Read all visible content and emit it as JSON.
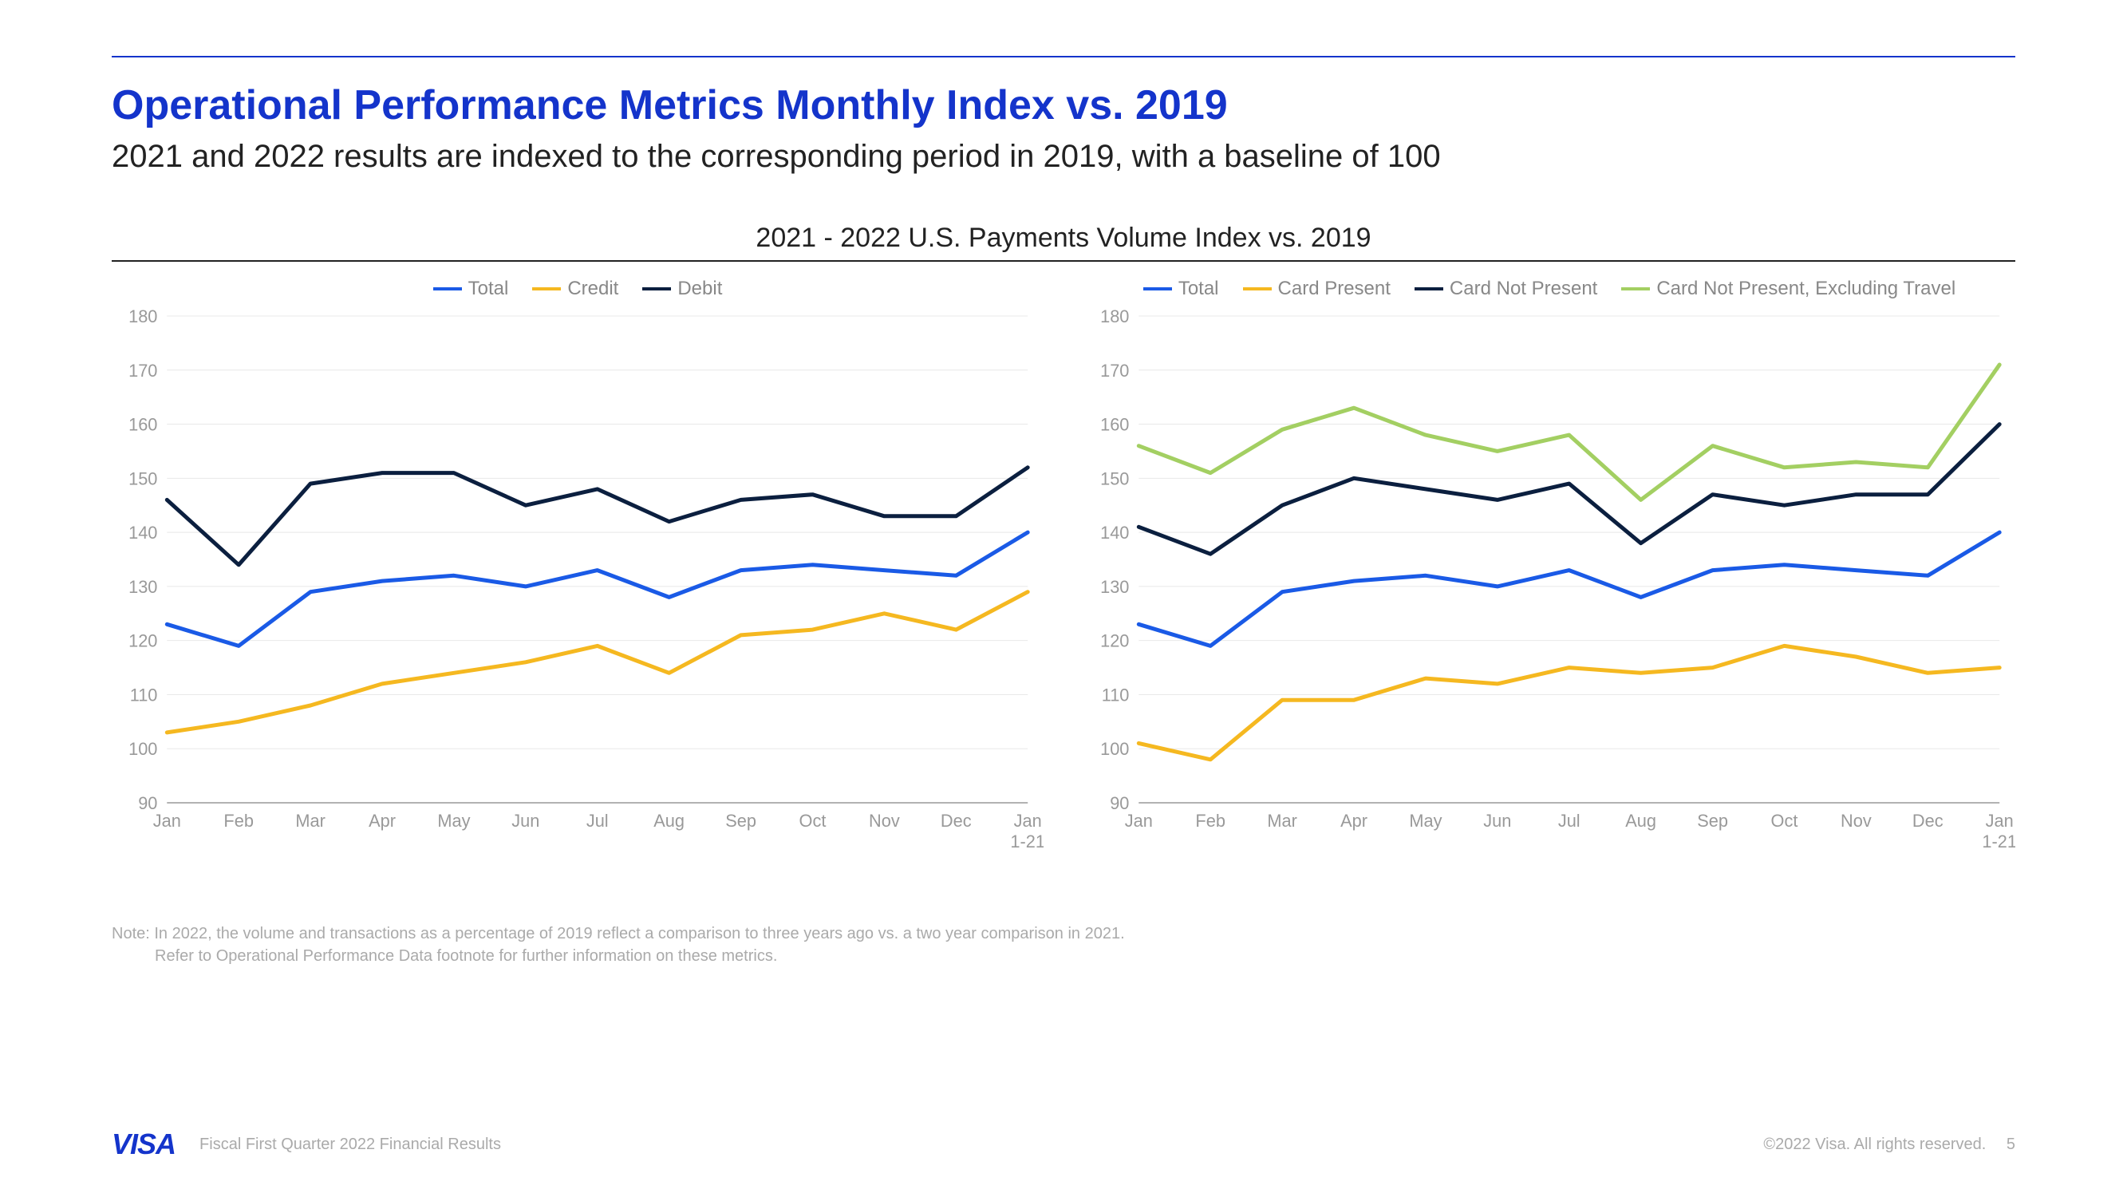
{
  "title": "Operational Performance Metrics Monthly Index vs. 2019",
  "subtitle": "2021 and 2022 results are indexed to the corresponding period in 2019, with a baseline of 100",
  "chart_section_title": "2021 - 2022 U.S. Payments Volume Index vs. 2019",
  "colors": {
    "brand_blue": "#1434cb",
    "total": "#1a5ae6",
    "credit": "#f5b820",
    "debit": "#0b1f3f",
    "card_present": "#f5b820",
    "card_not_present": "#0b1f3f",
    "cnp_ex_travel": "#a3cf62",
    "grid": "#e8e8e8",
    "text_muted": "#999999",
    "background": "#ffffff"
  },
  "axes": {
    "y_min": 90,
    "y_max": 180,
    "y_ticks": [
      90,
      100,
      110,
      120,
      130,
      140,
      150,
      160,
      170,
      180
    ],
    "x_labels": [
      "Jan",
      "Feb",
      "Mar",
      "Apr",
      "May",
      "Jun",
      "Jul",
      "Aug",
      "Sep",
      "Oct",
      "Nov",
      "Dec",
      "Jan\n1-21"
    ]
  },
  "chart_left": {
    "legend": [
      {
        "label": "Total",
        "color": "#1a5ae6"
      },
      {
        "label": "Credit",
        "color": "#f5b820"
      },
      {
        "label": "Debit",
        "color": "#0b1f3f"
      }
    ],
    "series": {
      "Total": [
        123,
        119,
        129,
        131,
        132,
        130,
        133,
        128,
        133,
        134,
        133,
        132,
        140
      ],
      "Credit": [
        103,
        105,
        108,
        112,
        114,
        116,
        119,
        114,
        121,
        122,
        125,
        122,
        129
      ],
      "Debit": [
        146,
        134,
        149,
        151,
        151,
        145,
        148,
        142,
        146,
        147,
        143,
        143,
        152
      ]
    },
    "line_width": 5
  },
  "chart_right": {
    "legend": [
      {
        "label": "Total",
        "color": "#1a5ae6"
      },
      {
        "label": "Card Present",
        "color": "#f5b820"
      },
      {
        "label": "Card Not Present",
        "color": "#0b1f3f"
      },
      {
        "label": "Card Not Present, Excluding Travel",
        "color": "#a3cf62"
      }
    ],
    "series": {
      "Total": [
        123,
        119,
        129,
        131,
        132,
        130,
        133,
        128,
        133,
        134,
        133,
        132,
        140
      ],
      "Card Present": [
        101,
        98,
        109,
        109,
        113,
        112,
        115,
        114,
        115,
        119,
        117,
        114,
        115
      ],
      "Card Not Present": [
        141,
        136,
        145,
        150,
        148,
        146,
        149,
        138,
        147,
        145,
        147,
        147,
        160
      ],
      "Card Not Present, Excluding Travel": [
        156,
        151,
        159,
        163,
        158,
        155,
        158,
        146,
        156,
        152,
        153,
        152,
        171
      ]
    },
    "line_width": 5
  },
  "footnote_line1": "Note: In 2022, the volume and transactions as a percentage of 2019 reflect a comparison to three years ago vs. a two year comparison in 2021.",
  "footnote_line2": "Refer to Operational Performance Data footnote for further information on these metrics.",
  "footer_left": "Fiscal First Quarter 2022 Financial Results",
  "footer_right": "©2022 Visa. All rights reserved.",
  "page_number": "5",
  "logo_text": "VISA"
}
